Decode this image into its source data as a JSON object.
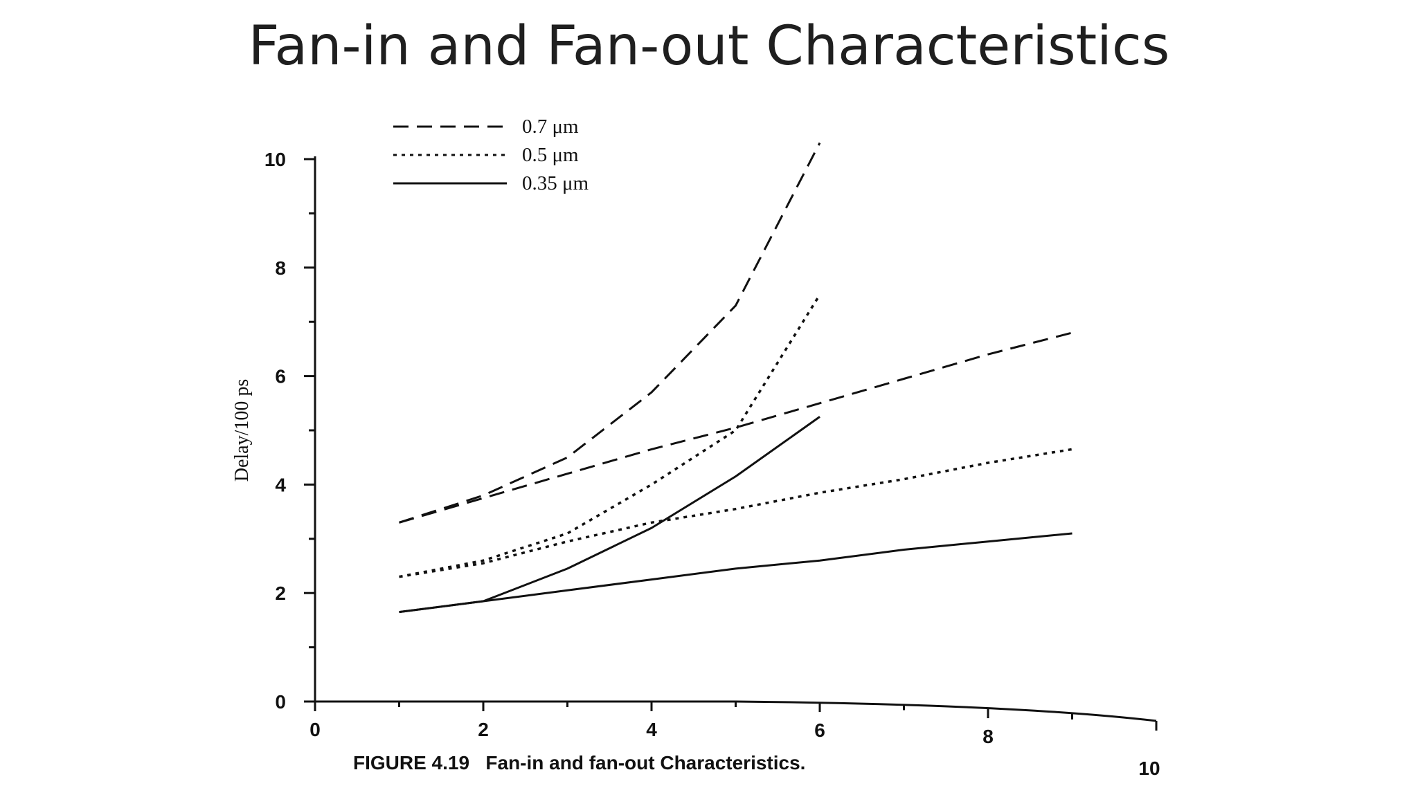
{
  "slide": {
    "title": "Fan-in and Fan-out Characteristics"
  },
  "chart_data": {
    "type": "line",
    "caption": "FIGURE 4.19   Fan-in and fan-out Characteristics.",
    "ylabel": "Delay/100 ps",
    "xlabel": "",
    "xlim": [
      0,
      10
    ],
    "ylim": [
      0,
      10
    ],
    "x_ticks": [
      "0",
      "2",
      "4",
      "6",
      "8",
      "10"
    ],
    "y_ticks": [
      "0",
      "2",
      "4",
      "6",
      "8",
      "10"
    ],
    "grid": false,
    "legend_position": "top-left",
    "legend": [
      {
        "label": "0.7 μm",
        "style": "dashed"
      },
      {
        "label": "0.5 μm",
        "style": "dotted"
      },
      {
        "label": "0.35 μm",
        "style": "solid"
      }
    ],
    "series": [
      {
        "style": "dashed",
        "x": [
          1,
          2,
          3,
          4,
          5,
          6
        ],
        "y": [
          3.3,
          3.8,
          4.5,
          5.7,
          7.3,
          10.3
        ]
      },
      {
        "style": "dashed",
        "x": [
          1,
          2,
          3,
          4,
          5,
          6,
          7,
          8,
          9
        ],
        "y": [
          3.3,
          3.75,
          4.2,
          4.65,
          5.05,
          5.5,
          5.95,
          6.4,
          6.8
        ]
      },
      {
        "style": "dotted",
        "x": [
          1,
          2,
          3,
          4,
          5,
          6
        ],
        "y": [
          2.3,
          2.6,
          3.1,
          4.0,
          5.0,
          7.5
        ]
      },
      {
        "style": "dotted",
        "x": [
          1,
          2,
          3,
          4,
          5,
          6,
          7,
          8,
          9
        ],
        "y": [
          2.3,
          2.55,
          2.95,
          3.3,
          3.55,
          3.85,
          4.1,
          4.4,
          4.65
        ]
      },
      {
        "style": "solid",
        "x": [
          1,
          2,
          3,
          4,
          5,
          6
        ],
        "y": [
          1.65,
          1.85,
          2.45,
          3.2,
          4.15,
          5.25
        ]
      },
      {
        "style": "solid",
        "x": [
          1,
          2,
          3,
          4,
          5,
          6,
          7,
          8,
          9
        ],
        "y": [
          1.65,
          1.85,
          2.05,
          2.25,
          2.45,
          2.6,
          2.8,
          2.95,
          3.1
        ]
      }
    ]
  }
}
